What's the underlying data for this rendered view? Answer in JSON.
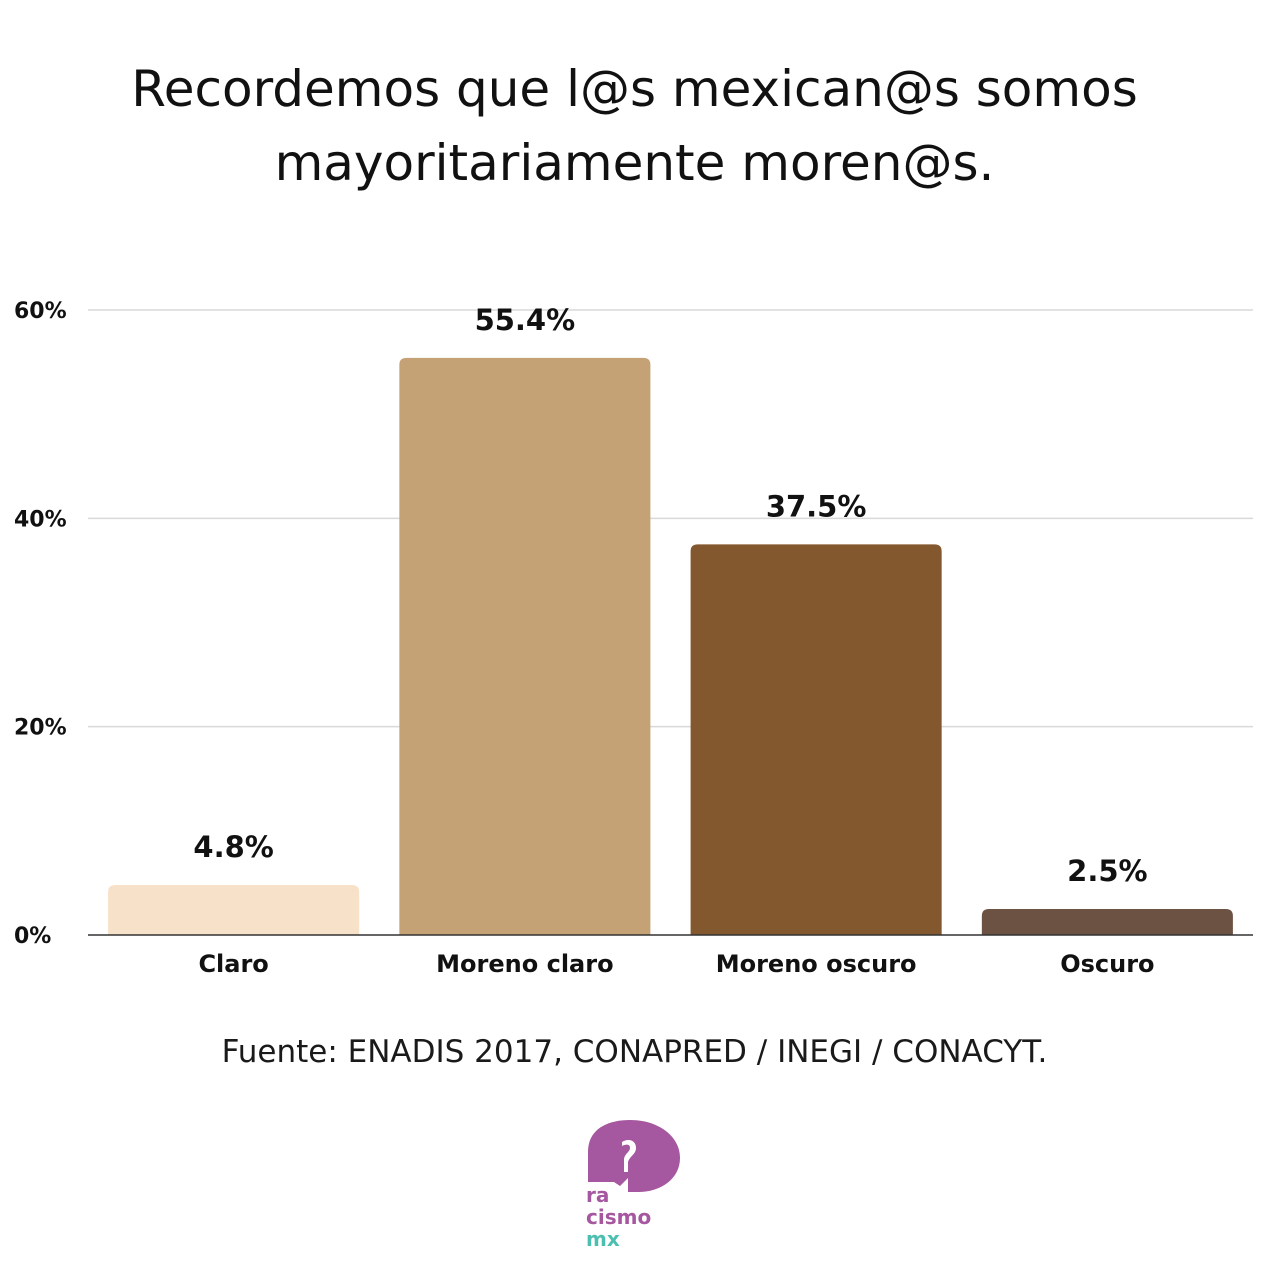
{
  "title_line1": "Recordemos que l@s mexican@s somos",
  "title_line2": "mayoritariamente moren@s.",
  "source": "Fuente: ENADIS 2017, CONAPRED / INEGI / CONACYT.",
  "logo": {
    "line1": "ra",
    "line2": "cismo",
    "line3": "mx",
    "purple": "#a5579f",
    "teal": "#4dbfb0"
  },
  "chart_data": {
    "type": "bar",
    "title": "Recordemos que l@s mexican@s somos mayoritariamente moren@s.",
    "xlabel": "",
    "ylabel": "",
    "ylim": [
      0,
      60
    ],
    "yticks": [
      0,
      20,
      40,
      60
    ],
    "ytick_labels": [
      "0%",
      "20%",
      "40%",
      "60%"
    ],
    "grid": true,
    "categories": [
      "Claro",
      "Moreno claro",
      "Moreno oscuro",
      "Oscuro"
    ],
    "values": [
      4.8,
      55.4,
      37.5,
      2.5
    ],
    "value_labels": [
      "4.8%",
      "55.4%",
      "37.5%",
      "2.5%"
    ],
    "colors": [
      "#f7e1c8",
      "#c4a276",
      "#84582f",
      "#6c5242"
    ]
  }
}
